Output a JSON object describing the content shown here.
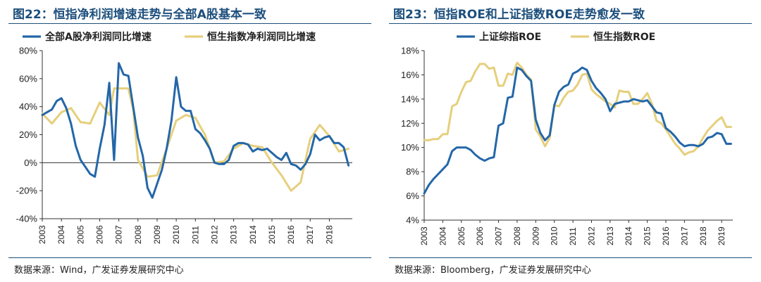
{
  "colors": {
    "title": "#1d4f7c",
    "blue": "#2467a8",
    "gold": "#e6cf7c",
    "axis": "#333333"
  },
  "left": {
    "title": "图22：恒指净利润增速走势与全部A股基本一致",
    "source": "数据来源：Wind，广发证券发展研究中心",
    "chart_data": {
      "type": "line",
      "title": "图22：恒指净利润增速走势与全部A股基本一致",
      "ylim": [
        -40,
        80
      ],
      "yticks": [
        -40,
        -20,
        0,
        20,
        40,
        60,
        80
      ],
      "ytick_labels": [
        "-40%",
        "-20%",
        "0%",
        "20%",
        "40%",
        "60%",
        "80%"
      ],
      "xlim": [
        2003,
        2019.2
      ],
      "xticks": [
        2003,
        2004,
        2005,
        2006,
        2007,
        2008,
        2009,
        2010,
        2011,
        2012,
        2013,
        2014,
        2015,
        2016,
        2017,
        2018
      ],
      "xtick_labels": [
        "2003",
        "2004",
        "2005",
        "2006",
        "2007",
        "2008",
        "2009",
        "2010",
        "2011",
        "2012",
        "2013",
        "2014",
        "2015",
        "2016",
        "2017",
        "2018"
      ],
      "grid": false,
      "legend_position": "top",
      "series": [
        {
          "name": "全部A股净利润同比增速",
          "color": "#2467a8",
          "x": [
            2003.0,
            2003.25,
            2003.5,
            2003.75,
            2004.0,
            2004.25,
            2004.5,
            2004.75,
            2005.0,
            2005.25,
            2005.5,
            2005.75,
            2006.0,
            2006.25,
            2006.5,
            2006.75,
            2007.0,
            2007.25,
            2007.5,
            2007.75,
            2008.0,
            2008.25,
            2008.5,
            2008.75,
            2009.0,
            2009.25,
            2009.5,
            2009.75,
            2010.0,
            2010.25,
            2010.5,
            2010.75,
            2011.0,
            2011.25,
            2011.5,
            2011.75,
            2012.0,
            2012.25,
            2012.5,
            2012.75,
            2013.0,
            2013.25,
            2013.5,
            2013.75,
            2014.0,
            2014.25,
            2014.5,
            2014.75,
            2015.0,
            2015.25,
            2015.5,
            2015.75,
            2016.0,
            2016.25,
            2016.5,
            2016.75,
            2017.0,
            2017.25,
            2017.5,
            2017.75,
            2018.0,
            2018.25,
            2018.5,
            2018.75,
            2019.0
          ],
          "y": [
            34,
            36,
            38,
            44,
            46,
            39,
            28,
            12,
            2,
            -3,
            -8,
            -10,
            10,
            27,
            57,
            2,
            71,
            63,
            62,
            40,
            18,
            5,
            -18,
            -25,
            -15,
            -5,
            10,
            30,
            61,
            40,
            37,
            37,
            24,
            21,
            16,
            10,
            0,
            -1,
            -1,
            2,
            12,
            14,
            14,
            13,
            8,
            10,
            9,
            10,
            7,
            4,
            2,
            7,
            -1,
            -2,
            -5,
            -1,
            6,
            20,
            16,
            18,
            19,
            14,
            14,
            11,
            -2
          ]
        },
        {
          "name": "恒生指数净利润同比增速",
          "color": "#e6cf7c",
          "x": [
            2003.0,
            2003.5,
            2004.0,
            2004.5,
            2005.0,
            2005.5,
            2006.0,
            2006.5,
            2006.75,
            2007.0,
            2007.5,
            2007.75,
            2008.0,
            2008.5,
            2009.0,
            2009.5,
            2010.0,
            2010.5,
            2011.0,
            2011.5,
            2012.0,
            2012.5,
            2013.0,
            2013.5,
            2014.0,
            2014.5,
            2015.0,
            2015.5,
            2016.0,
            2016.5,
            2017.0,
            2017.5,
            2018.0,
            2018.5,
            2019.0
          ],
          "y": [
            35,
            28,
            36,
            39,
            29,
            28,
            43,
            34,
            53,
            53,
            53,
            38,
            2,
            -10,
            -9,
            10,
            30,
            34,
            32,
            20,
            0,
            1,
            10,
            14,
            12,
            11,
            0,
            -9,
            -20,
            -14,
            17,
            27,
            19,
            8,
            10
          ]
        }
      ]
    }
  },
  "right": {
    "title": "图23：恒指ROE和上证指数ROE走势愈发一致",
    "source": "数据来源：Bloomberg，广发证券发展研究中心",
    "chart_data": {
      "type": "line",
      "title": "图23：恒指ROE和上证指数ROE走势愈发一致",
      "ylim": [
        4,
        18
      ],
      "yticks": [
        4,
        6,
        8,
        10,
        12,
        14,
        16,
        18
      ],
      "ytick_labels": [
        "4%",
        "6%",
        "8%",
        "10%",
        "12%",
        "14%",
        "16%",
        "18%"
      ],
      "xlim": [
        2003,
        2019.6
      ],
      "xticks": [
        2003,
        2004,
        2005,
        2006,
        2007,
        2008,
        2009,
        2010,
        2011,
        2012,
        2013,
        2014,
        2015,
        2016,
        2017,
        2018,
        2019
      ],
      "xtick_labels": [
        "2003",
        "2004",
        "2005",
        "2006",
        "2007",
        "2008",
        "2009",
        "2010",
        "2011",
        "2012",
        "2013",
        "2014",
        "2015",
        "2016",
        "2017",
        "2018",
        "2019"
      ],
      "grid": false,
      "legend_position": "top",
      "series": [
        {
          "name": "上证综指ROE",
          "color": "#2467a8",
          "x": [
            2003.0,
            2003.25,
            2003.5,
            2003.75,
            2004.0,
            2004.25,
            2004.5,
            2004.75,
            2005.0,
            2005.25,
            2005.5,
            2005.75,
            2006.0,
            2006.25,
            2006.5,
            2006.75,
            2007.0,
            2007.25,
            2007.5,
            2007.75,
            2008.0,
            2008.25,
            2008.5,
            2008.75,
            2009.0,
            2009.25,
            2009.5,
            2009.75,
            2010.0,
            2010.25,
            2010.5,
            2010.75,
            2011.0,
            2011.25,
            2011.5,
            2011.75,
            2012.0,
            2012.25,
            2012.5,
            2012.75,
            2013.0,
            2013.25,
            2013.5,
            2013.75,
            2014.0,
            2014.25,
            2014.5,
            2014.75,
            2015.0,
            2015.25,
            2015.5,
            2015.75,
            2016.0,
            2016.25,
            2016.5,
            2016.75,
            2017.0,
            2017.25,
            2017.5,
            2017.75,
            2018.0,
            2018.25,
            2018.5,
            2018.75,
            2019.0,
            2019.25,
            2019.5
          ],
          "y": [
            6.2,
            6.9,
            7.4,
            7.8,
            8.2,
            8.6,
            9.7,
            10.0,
            10.0,
            10.0,
            9.8,
            9.4,
            9.1,
            8.9,
            9.1,
            9.2,
            11.8,
            12.0,
            14.1,
            14.2,
            16.6,
            16.4,
            15.9,
            15.5,
            12.3,
            11.2,
            10.6,
            11.0,
            13.5,
            14.6,
            15.0,
            15.2,
            16.1,
            16.3,
            16.6,
            16.4,
            15.5,
            14.9,
            14.5,
            14.0,
            13.0,
            13.6,
            13.7,
            13.8,
            13.8,
            14.0,
            13.9,
            13.8,
            13.9,
            13.4,
            12.9,
            12.8,
            11.6,
            11.3,
            10.9,
            10.4,
            10.1,
            10.2,
            10.2,
            10.1,
            10.3,
            10.8,
            10.9,
            11.2,
            11.1,
            10.3,
            10.3
          ]
        },
        {
          "name": "恒生指数ROE",
          "color": "#e6cf7c",
          "x": [
            2003.0,
            2003.25,
            2003.5,
            2003.75,
            2004.0,
            2004.25,
            2004.5,
            2004.75,
            2005.0,
            2005.25,
            2005.5,
            2005.75,
            2006.0,
            2006.25,
            2006.5,
            2006.75,
            2007.0,
            2007.25,
            2007.5,
            2007.75,
            2008.0,
            2008.25,
            2008.5,
            2008.75,
            2009.0,
            2009.25,
            2009.5,
            2009.75,
            2010.0,
            2010.25,
            2010.5,
            2010.75,
            2011.0,
            2011.25,
            2011.5,
            2011.75,
            2012.0,
            2012.25,
            2012.5,
            2012.75,
            2013.0,
            2013.25,
            2013.5,
            2013.75,
            2014.0,
            2014.25,
            2014.5,
            2014.75,
            2015.0,
            2015.25,
            2015.5,
            2015.75,
            2016.0,
            2016.25,
            2016.5,
            2016.75,
            2017.0,
            2017.25,
            2017.5,
            2017.75,
            2018.0,
            2018.25,
            2018.5,
            2018.75,
            2019.0,
            2019.25,
            2019.5
          ],
          "y": [
            10.6,
            10.6,
            10.7,
            10.7,
            11.1,
            11.1,
            13.4,
            13.6,
            14.6,
            15.4,
            15.5,
            16.3,
            16.9,
            16.9,
            16.5,
            16.6,
            15.1,
            15.1,
            16.1,
            16.0,
            17.0,
            16.6,
            16.0,
            15.6,
            11.5,
            10.9,
            10.1,
            10.8,
            13.5,
            13.4,
            14.1,
            14.6,
            14.7,
            15.2,
            16.0,
            16.1,
            14.8,
            14.4,
            14.1,
            13.8,
            13.6,
            13.3,
            14.7,
            14.6,
            14.6,
            13.6,
            13.6,
            14.0,
            14.5,
            13.6,
            12.2,
            12.0,
            11.5,
            10.9,
            10.3,
            9.9,
            9.4,
            9.6,
            9.7,
            10.1,
            10.8,
            11.4,
            11.8,
            12.2,
            12.5,
            11.7,
            11.7
          ]
        }
      ]
    }
  }
}
